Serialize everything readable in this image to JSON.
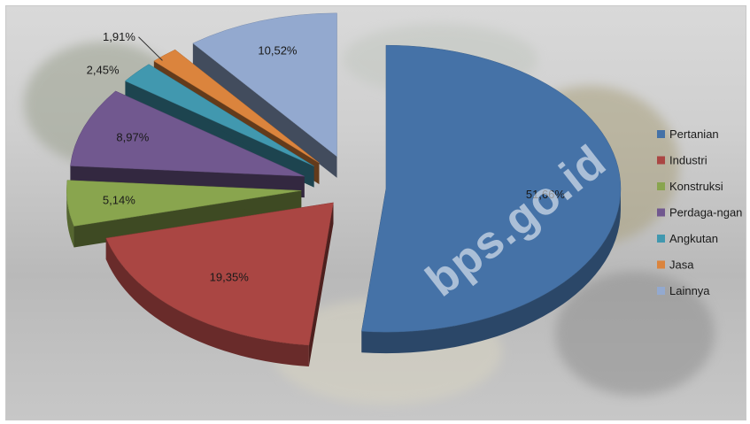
{
  "chart_data": {
    "type": "pie",
    "three_d": true,
    "exploded": true,
    "title": "",
    "categories": [
      "Pertanian",
      "Industri",
      "Konstruksi",
      "Perdaga-ngan",
      "Angkutan",
      "Jasa",
      "Lainnya"
    ],
    "values": [
      51.66,
      19.35,
      5.14,
      8.97,
      2.45,
      1.91,
      10.52
    ],
    "labels": [
      "51,66%",
      "19,35%",
      "5,14%",
      "8,97%",
      "2,45%",
      "1,91%",
      "10,52%"
    ],
    "colors": [
      "#4572a7",
      "#aa4643",
      "#89a54e",
      "#71588f",
      "#4198af",
      "#db843d",
      "#93a9cf"
    ],
    "legend_position": "right"
  },
  "watermark": "bps.go.id"
}
